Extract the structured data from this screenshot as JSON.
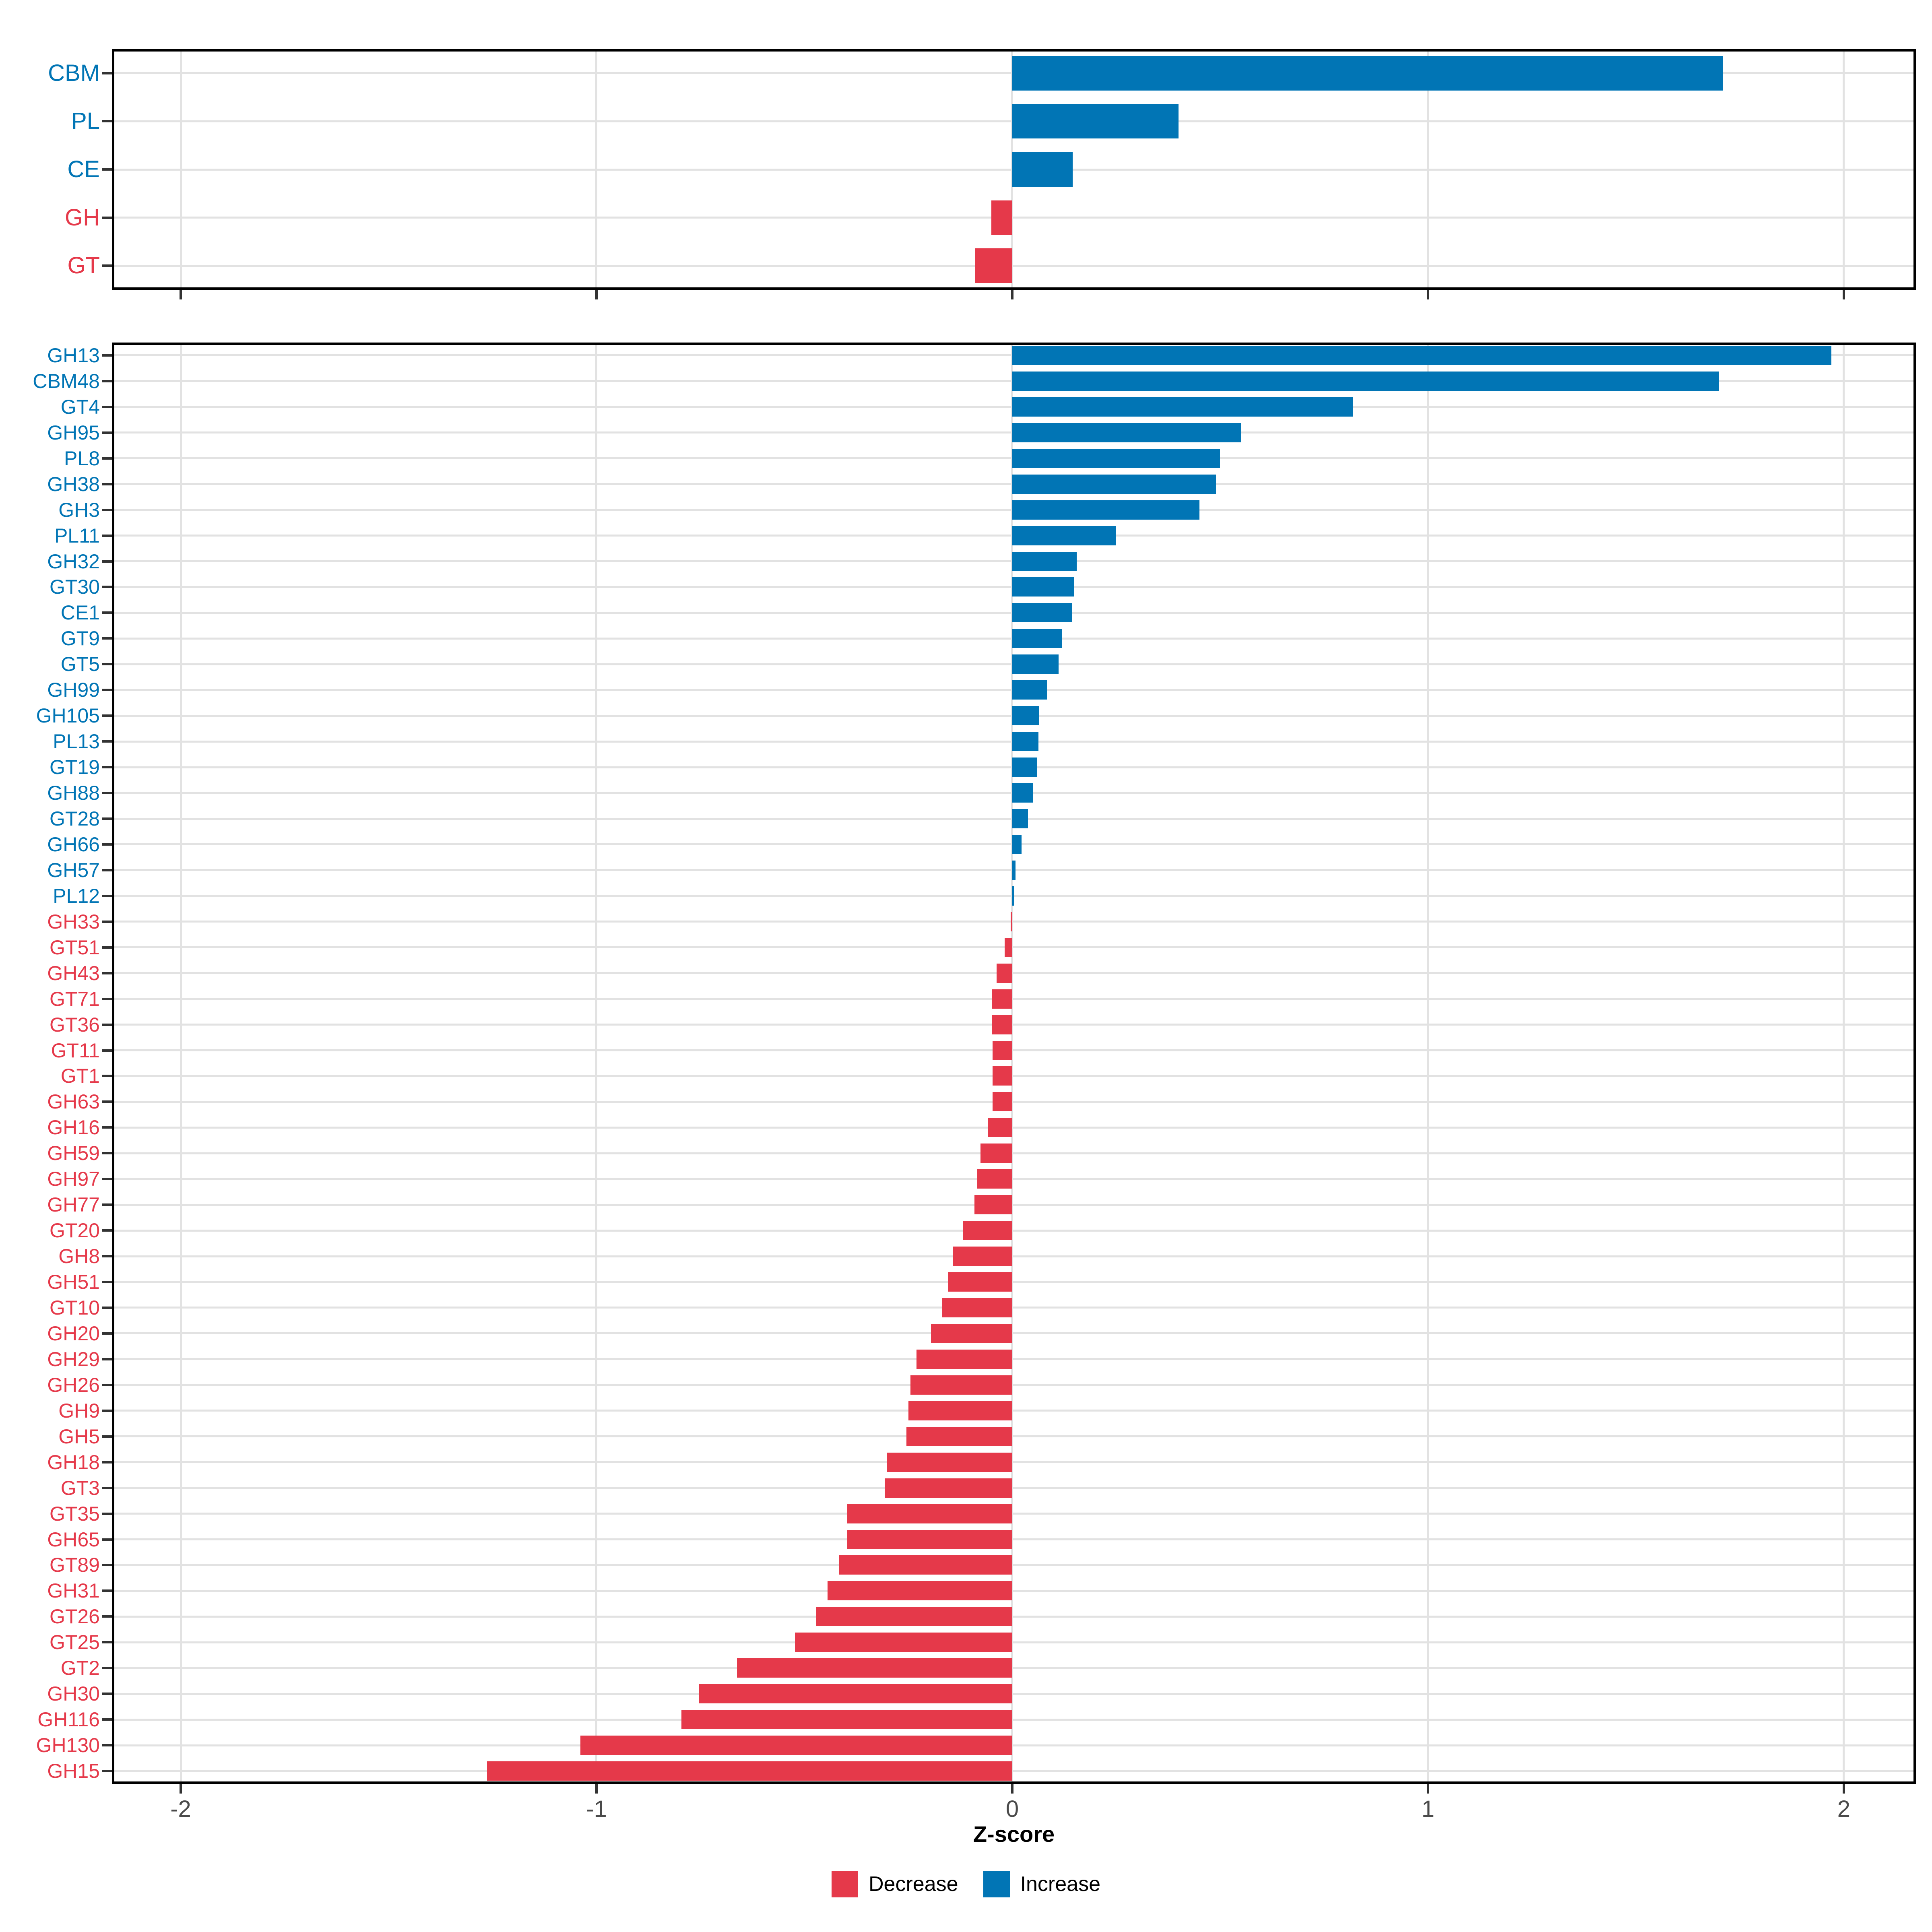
{
  "colors": {
    "increase": "#0175B5",
    "decrease": "#E5394A",
    "grid": "#E2E2E2",
    "panel_border": "#000000",
    "tick_mark": "#333333",
    "axis_tick_text": "#4A4A4A",
    "axis_title_text": "#000000",
    "background": "#FFFFFF"
  },
  "chart_data": {
    "type": "bar",
    "orientation": "horizontal",
    "title": "",
    "xlabel": "Z-score",
    "ylabel": "",
    "xlim": [
      -2.17,
      2.18
    ],
    "x_ticks": [
      -2,
      -1,
      0,
      1,
      2
    ],
    "x_tick_labels": [
      "-2",
      "-1",
      "0",
      "1",
      "2"
    ],
    "grid": "major-only",
    "legend_position": "bottom",
    "legend": [
      {
        "label": "Decrease",
        "key": "decrease"
      },
      {
        "label": "Increase",
        "key": "increase"
      }
    ],
    "panels": [
      {
        "name": "cazyme-class-panel",
        "categories": [
          "CBM",
          "PL",
          "CE",
          "GH",
          "GT"
        ],
        "values": [
          1.71,
          0.4,
          0.145,
          -0.05,
          -0.089
        ],
        "directions": [
          "increase",
          "increase",
          "increase",
          "decrease",
          "decrease"
        ]
      },
      {
        "name": "cazyme-family-panel",
        "categories": [
          "GH13",
          "CBM48",
          "GT4",
          "GH95",
          "PL8",
          "GH38",
          "GH3",
          "PL11",
          "GH32",
          "GT30",
          "CE1",
          "GT9",
          "GT5",
          "GH99",
          "GH105",
          "PL13",
          "GT19",
          "GH88",
          "GT28",
          "GH66",
          "GH57",
          "PL12",
          "GH33",
          "GT51",
          "GH43",
          "GT71",
          "GT36",
          "GT11",
          "GT1",
          "GH63",
          "GH16",
          "GH59",
          "GH97",
          "GH77",
          "GT20",
          "GH8",
          "GH51",
          "GT10",
          "GH20",
          "GH29",
          "GH26",
          "GH9",
          "GH5",
          "GH18",
          "GT3",
          "GT35",
          "GH65",
          "GT89",
          "GH31",
          "GT26",
          "GT25",
          "GT2",
          "GH30",
          "GH116",
          "GH130",
          "GH15"
        ],
        "values": [
          1.97,
          1.7,
          0.82,
          0.55,
          0.5,
          0.49,
          0.45,
          0.25,
          0.155,
          0.148,
          0.143,
          0.12,
          0.111,
          0.083,
          0.065,
          0.063,
          0.06,
          0.049,
          0.038,
          0.022,
          0.008,
          0.005,
          -0.004,
          -0.018,
          -0.038,
          -0.048,
          -0.048,
          -0.047,
          -0.047,
          -0.047,
          -0.059,
          -0.076,
          -0.084,
          -0.091,
          -0.119,
          -0.143,
          -0.154,
          -0.168,
          -0.196,
          -0.23,
          -0.245,
          -0.25,
          -0.255,
          -0.302,
          -0.307,
          -0.398,
          -0.398,
          -0.417,
          -0.444,
          -0.472,
          -0.523,
          -0.662,
          -0.754,
          -0.796,
          -1.039,
          -1.263
        ],
        "directions": [
          "increase",
          "increase",
          "increase",
          "increase",
          "increase",
          "increase",
          "increase",
          "increase",
          "increase",
          "increase",
          "increase",
          "increase",
          "increase",
          "increase",
          "increase",
          "increase",
          "increase",
          "increase",
          "increase",
          "increase",
          "increase",
          "increase",
          "decrease",
          "decrease",
          "decrease",
          "decrease",
          "decrease",
          "decrease",
          "decrease",
          "decrease",
          "decrease",
          "decrease",
          "decrease",
          "decrease",
          "decrease",
          "decrease",
          "decrease",
          "decrease",
          "decrease",
          "decrease",
          "decrease",
          "decrease",
          "decrease",
          "decrease",
          "decrease",
          "decrease",
          "decrease",
          "decrease",
          "decrease",
          "decrease",
          "decrease",
          "decrease",
          "decrease",
          "decrease",
          "decrease",
          "decrease"
        ]
      }
    ]
  }
}
